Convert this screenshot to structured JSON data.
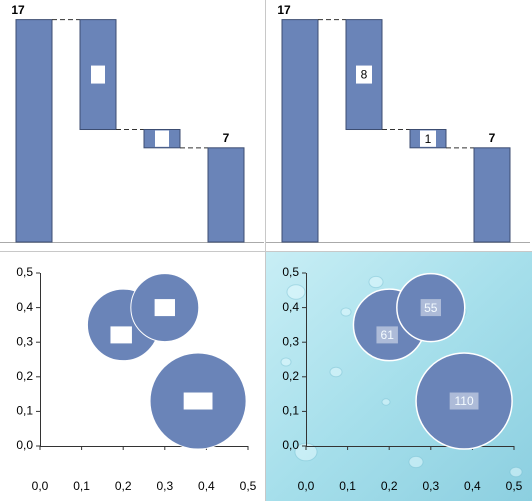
{
  "chart_data": [
    {
      "type": "waterfall",
      "color": "#6a84b8",
      "ylim": [
        0,
        18.5
      ],
      "measure": [
        "total",
        "decrease",
        "decrease",
        "total"
      ],
      "values": [
        17,
        8.4,
        1.4,
        7.2
      ],
      "value_labels": [
        "17",
        null,
        null,
        "7"
      ]
    },
    {
      "type": "waterfall",
      "color": "#6a84b8",
      "ylim": [
        0,
        18.5
      ],
      "measure": [
        "total",
        "decrease",
        "decrease",
        "total"
      ],
      "values": [
        17,
        8.4,
        1.4,
        7.2
      ],
      "value_labels": [
        "17",
        "8",
        "1",
        "7"
      ]
    },
    {
      "type": "bubble",
      "color": "#6a84b8",
      "background": "white",
      "x": [
        0.2,
        0.3,
        0.38
      ],
      "y": [
        0.35,
        0.4,
        0.13
      ],
      "sizes": [
        61,
        55,
        110
      ],
      "value_labels": [
        null,
        null,
        null
      ],
      "xlim": [
        0,
        0.5
      ],
      "ylim": [
        0,
        0.5
      ],
      "xticks": [
        {
          "value": 0,
          "label": "0,0"
        },
        {
          "value": 0.1,
          "label": "0,1"
        },
        {
          "value": 0.2,
          "label": "0,2"
        },
        {
          "value": 0.3,
          "label": "0,3"
        },
        {
          "value": 0.4,
          "label": "0,4"
        },
        {
          "value": 0.5,
          "label": "0,5"
        }
      ],
      "yticks": [
        {
          "value": 0,
          "label": "0,0"
        },
        {
          "value": 0.1,
          "label": "0,1"
        },
        {
          "value": 0.2,
          "label": "0,2"
        },
        {
          "value": 0.3,
          "label": "0,3"
        },
        {
          "value": 0.4,
          "label": "0,4"
        },
        {
          "value": 0.5,
          "label": "0,5"
        }
      ]
    },
    {
      "type": "bubble",
      "color": "#6a84b8",
      "background": "water",
      "x": [
        0.2,
        0.3,
        0.38
      ],
      "y": [
        0.35,
        0.4,
        0.13
      ],
      "sizes": [
        61,
        55,
        110
      ],
      "value_labels": [
        "61",
        "55",
        "110"
      ],
      "xlim": [
        0,
        0.5
      ],
      "ylim": [
        0,
        0.5
      ],
      "xticks": [
        {
          "value": 0,
          "label": "0,0"
        },
        {
          "value": 0.1,
          "label": "0,1"
        },
        {
          "value": 0.2,
          "label": "0,2"
        },
        {
          "value": 0.3,
          "label": "0,3"
        },
        {
          "value": 0.4,
          "label": "0,4"
        },
        {
          "value": 0.5,
          "label": "0,5"
        }
      ],
      "yticks": [
        {
          "value": 0,
          "label": "0,0"
        },
        {
          "value": 0.1,
          "label": "0,1"
        },
        {
          "value": 0.2,
          "label": "0,2"
        },
        {
          "value": 0.3,
          "label": "0,3"
        },
        {
          "value": 0.4,
          "label": "0,4"
        },
        {
          "value": 0.5,
          "label": "0,5"
        }
      ]
    }
  ]
}
